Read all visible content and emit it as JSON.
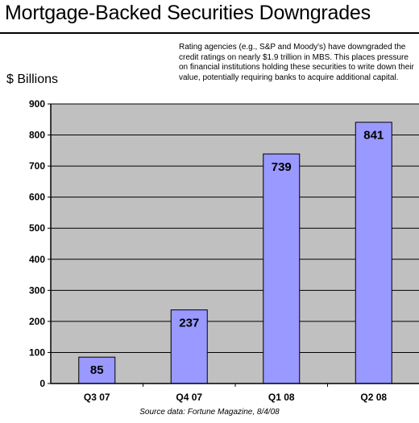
{
  "title": "Mortgage-Backed Securities Downgrades",
  "note": "Rating agencies (e.g., S&P and Moody's) have downgraded the credit ratings on nearly $1.9 trillion in MBS.  This places pressure on financial institutions holding these securities to write down their value, potentially requiring banks to acquire additional capital.",
  "source": "Source data:  Fortune Magazine, 8/4/08",
  "colors": {
    "plot_background": "#c0c0c0",
    "bar_fill": "#9999ff",
    "bar_stroke": "#000000"
  },
  "chart_data": {
    "type": "bar",
    "title": "Mortgage-Backed Securities Downgrades",
    "ylabel": "$ Billions",
    "xlabel": "",
    "categories": [
      "Q3 07",
      "Q4 07",
      "Q1 08",
      "Q2 08"
    ],
    "values": [
      85,
      237,
      739,
      841
    ],
    "ylim": [
      0,
      900
    ],
    "yticks": [
      0,
      100,
      200,
      300,
      400,
      500,
      600,
      700,
      800,
      900
    ],
    "grid": true,
    "data_labels": true,
    "legend": "none"
  }
}
